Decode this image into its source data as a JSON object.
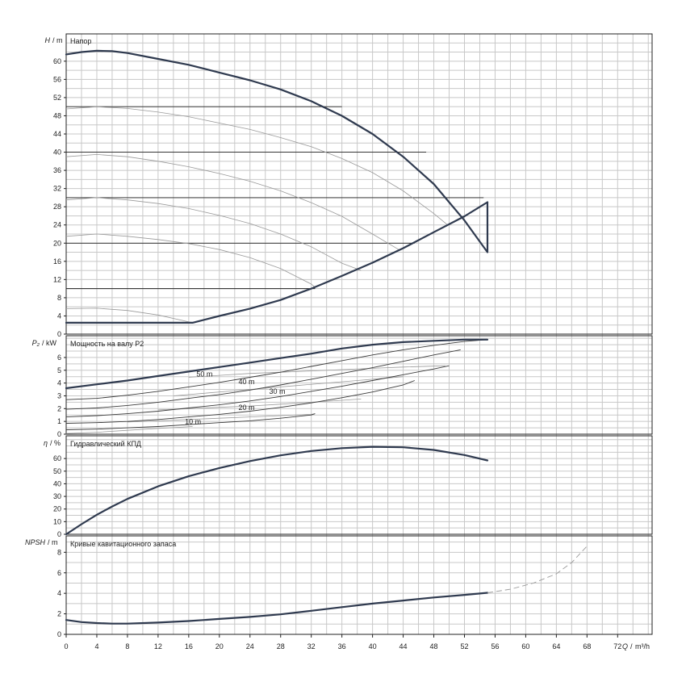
{
  "chart_data": [
    {
      "type": "line",
      "panel": "head",
      "title": "Напор",
      "ylabel_main": "H",
      "ylabel_unit": "m",
      "ylim": [
        0,
        66
      ],
      "yticks": [
        0,
        4,
        8,
        12,
        16,
        20,
        24,
        28,
        32,
        36,
        40,
        44,
        48,
        52,
        56,
        60
      ],
      "max_curve": {
        "x": [
          0,
          2,
          4,
          6,
          8,
          12,
          16,
          20,
          24,
          28,
          32,
          36,
          40,
          44,
          48,
          52,
          55
        ],
        "y": [
          61.5,
          62,
          62.3,
          62.2,
          61.8,
          60.5,
          59.2,
          57.5,
          55.8,
          53.8,
          51.2,
          48,
          44,
          39,
          33,
          25,
          18
        ]
      },
      "min_curve": {
        "x": [
          0,
          4,
          8,
          12,
          16.5,
          20,
          24,
          28,
          32,
          36,
          40,
          44,
          48,
          52,
          55
        ],
        "y": [
          2.5,
          2.5,
          2.5,
          2.5,
          2.5,
          4,
          5.6,
          7.5,
          10,
          12.8,
          15.7,
          18.9,
          22.4,
          25.9,
          29
        ]
      },
      "speed_curves": [
        {
          "x": [
            0,
            4,
            8,
            12,
            16,
            20,
            24,
            28,
            32,
            36,
            40,
            44,
            48,
            49.8
          ],
          "y": [
            49.5,
            50,
            49.6,
            48.8,
            47.8,
            46.4,
            45,
            43.2,
            41.2,
            38.6,
            35.5,
            31.5,
            26.5,
            24
          ]
        },
        {
          "x": [
            0,
            4,
            8,
            12,
            16,
            20,
            24,
            28,
            32,
            36,
            40,
            43.5
          ],
          "y": [
            39,
            39.5,
            39,
            38,
            36.8,
            35.3,
            33.6,
            31.5,
            28.9,
            25.9,
            22,
            18.5
          ]
        },
        {
          "x": [
            0,
            4,
            8,
            12,
            16,
            20,
            24,
            28,
            32,
            36,
            38.5
          ],
          "y": [
            29.5,
            30,
            29.5,
            28.7,
            27.6,
            26.1,
            24.3,
            22,
            19.2,
            15.6,
            14
          ]
        },
        {
          "x": [
            0,
            4,
            8,
            12,
            16,
            20,
            24,
            28,
            32,
            32.5
          ],
          "y": [
            21.5,
            22,
            21.5,
            20.8,
            19.9,
            18.6,
            16.8,
            14.4,
            11,
            10.3
          ]
        },
        {
          "x": [
            0,
            4,
            8,
            12,
            16.5
          ],
          "y": [
            5.6,
            5.7,
            5.2,
            4.2,
            2.5
          ]
        }
      ],
      "hlines": [
        {
          "y": 10,
          "x0": 0,
          "x1": 32.5
        },
        {
          "y": 20,
          "x0": 0,
          "x1": 45.5
        },
        {
          "y": 30,
          "x0": 0,
          "x1": 54.5
        },
        {
          "y": 40,
          "x0": 0,
          "x1": 47
        },
        {
          "y": 50,
          "x0": 0,
          "x1": 36
        }
      ]
    },
    {
      "type": "line",
      "panel": "power",
      "title": "Мощность на валу P2",
      "ylabel_main": "P₂",
      "ylabel_unit": "kW",
      "ylim": [
        0,
        7.7
      ],
      "yticks": [
        0,
        1,
        2,
        3,
        4,
        5,
        6
      ],
      "max_curve": {
        "x": [
          0,
          4,
          8,
          12,
          16,
          20,
          24,
          28,
          32,
          36,
          40,
          44,
          48,
          52,
          55
        ],
        "y": [
          3.6,
          3.9,
          4.2,
          4.55,
          4.9,
          5.25,
          5.6,
          5.95,
          6.3,
          6.7,
          7.0,
          7.2,
          7.3,
          7.4,
          7.4
        ]
      },
      "labels": [
        {
          "text": "50 m",
          "x": 17,
          "y": 4.5
        },
        {
          "text": "40 m",
          "x": 22.5,
          "y": 3.9
        },
        {
          "text": "30 m",
          "x": 26.5,
          "y": 3.15
        },
        {
          "text": "20 m",
          "x": 22.5,
          "y": 1.9
        },
        {
          "text": "10 m",
          "x": 15.5,
          "y": 0.8
        }
      ],
      "curves": [
        {
          "x": [
            0,
            4,
            8,
            12,
            16,
            20,
            24,
            28,
            32,
            36,
            40,
            44,
            48,
            52,
            55
          ],
          "y": [
            2.7,
            2.8,
            3.05,
            3.35,
            3.7,
            4.05,
            4.45,
            4.85,
            5.3,
            5.75,
            6.2,
            6.6,
            6.95,
            7.25,
            7.4
          ]
        },
        {
          "x": [
            0,
            4,
            8,
            12,
            16,
            20,
            24,
            28,
            32,
            36,
            40,
            44,
            48,
            51.5
          ],
          "y": [
            1.95,
            2.05,
            2.25,
            2.5,
            2.8,
            3.1,
            3.45,
            3.85,
            4.3,
            4.75,
            5.2,
            5.7,
            6.2,
            6.6
          ]
        },
        {
          "x": [
            0,
            4,
            8,
            12,
            16,
            20,
            24,
            28,
            32,
            36,
            40,
            44,
            48,
            50
          ],
          "y": [
            1.35,
            1.45,
            1.6,
            1.8,
            2.05,
            2.3,
            2.6,
            2.95,
            3.35,
            3.75,
            4.2,
            4.65,
            5.1,
            5.35
          ]
        },
        {
          "x": [
            0,
            4,
            8,
            12,
            16,
            20,
            24,
            28,
            32,
            36,
            40,
            44,
            45.5
          ],
          "y": [
            0.85,
            0.9,
            1.0,
            1.15,
            1.35,
            1.55,
            1.8,
            2.1,
            2.45,
            2.85,
            3.3,
            3.85,
            4.2
          ]
        },
        {
          "x": [
            0,
            4,
            8,
            12,
            16,
            20,
            24,
            28,
            32,
            32.5
          ],
          "y": [
            0.35,
            0.4,
            0.5,
            0.6,
            0.75,
            0.9,
            1.05,
            1.25,
            1.5,
            1.6
          ]
        }
      ],
      "light_curves": [
        {
          "x": [
            16,
            20,
            24,
            28,
            32,
            36,
            40,
            44,
            49.5
          ],
          "y": [
            4.45,
            4.6,
            4.75,
            4.85,
            4.95,
            5.05,
            5.15,
            5.25,
            5.35
          ]
        },
        {
          "x": [
            14,
            18,
            22,
            26,
            30,
            34,
            38,
            42,
            44
          ],
          "y": [
            3.0,
            3.2,
            3.4,
            3.6,
            3.8,
            4.0,
            4.2,
            4.4,
            4.5
          ]
        },
        {
          "x": [
            12,
            16,
            20,
            24,
            28,
            32,
            36,
            38.5
          ],
          "y": [
            1.9,
            2.0,
            2.1,
            2.2,
            2.35,
            2.5,
            2.65,
            2.75
          ]
        },
        {
          "x": [
            8,
            12,
            16,
            20,
            24,
            28,
            32,
            32.5
          ],
          "y": [
            0.95,
            1.05,
            1.15,
            1.25,
            1.35,
            1.45,
            1.55,
            1.6
          ]
        },
        {
          "x": [
            0,
            4,
            8,
            12,
            16.5
          ],
          "y": [
            0.05,
            0.15,
            0.3,
            0.45,
            0.6
          ]
        }
      ]
    },
    {
      "type": "line",
      "panel": "efficiency",
      "title": "Гидравлический КПД",
      "ylabel_main": "η",
      "ylabel_unit": "%",
      "ylim": [
        0,
        78
      ],
      "yticks": [
        0,
        10,
        20,
        30,
        40,
        50,
        60
      ],
      "curve": {
        "x": [
          0,
          2,
          4,
          6,
          8,
          12,
          16,
          20,
          24,
          28,
          32,
          36,
          40,
          44,
          48,
          52,
          55
        ],
        "y": [
          0,
          8,
          15.5,
          22,
          28,
          38,
          46,
          52.5,
          58,
          62.5,
          66,
          68.2,
          69.3,
          68.9,
          66.8,
          62.8,
          58.5
        ]
      }
    },
    {
      "type": "line",
      "panel": "npsh",
      "title": "Кривые кавитационного запаса",
      "ylabel_main": "NPSH",
      "ylabel_unit": "m",
      "ylim": [
        0,
        9.6
      ],
      "yticks": [
        0,
        2,
        4,
        6,
        8
      ],
      "xlabel_main": "Q",
      "xlabel_unit": "m³/h",
      "xlim": [
        0,
        76.5
      ],
      "xticks": [
        0,
        4,
        8,
        12,
        16,
        20,
        24,
        28,
        32,
        36,
        40,
        44,
        48,
        52,
        56,
        60,
        64,
        68,
        72
      ],
      "curve": {
        "x": [
          0,
          2,
          4,
          6,
          8,
          12,
          16,
          20,
          24,
          28,
          32,
          36,
          40,
          44,
          48,
          52,
          55
        ],
        "y": [
          1.4,
          1.2,
          1.1,
          1.05,
          1.05,
          1.15,
          1.3,
          1.5,
          1.7,
          1.95,
          2.3,
          2.65,
          3.0,
          3.3,
          3.6,
          3.85,
          4.05
        ]
      },
      "extension": {
        "x": [
          55,
          58,
          61,
          64,
          66,
          68
        ],
        "y": [
          4.05,
          4.4,
          5.0,
          5.9,
          7.0,
          8.6
        ]
      }
    }
  ]
}
